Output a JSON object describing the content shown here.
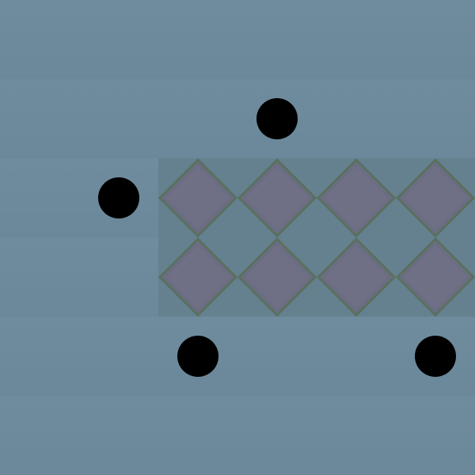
{
  "board": {
    "name": "grid-puzzle-board",
    "cols": 6,
    "rows": 6,
    "colors": {
      "floor": "#6f8c9e",
      "floor_shadow": "#688597",
      "tile_zone": "#65818f",
      "diamond_fill": "#6b6d82",
      "diamond_edge": "#59705e",
      "diamond_highlight": "#7a7b90",
      "piece": "#000000"
    },
    "tiles": [
      {
        "col": 2,
        "row": 2
      },
      {
        "col": 3,
        "row": 2
      },
      {
        "col": 4,
        "row": 2
      },
      {
        "col": 5,
        "row": 2
      },
      {
        "col": 2,
        "row": 3
      },
      {
        "col": 3,
        "row": 3
      },
      {
        "col": 4,
        "row": 3
      },
      {
        "col": 5,
        "row": 3
      }
    ],
    "pieces": [
      {
        "col": 3,
        "row": 1
      },
      {
        "col": 1,
        "row": 2
      },
      {
        "col": 2,
        "row": 4
      },
      {
        "col": 5,
        "row": 4
      }
    ]
  }
}
